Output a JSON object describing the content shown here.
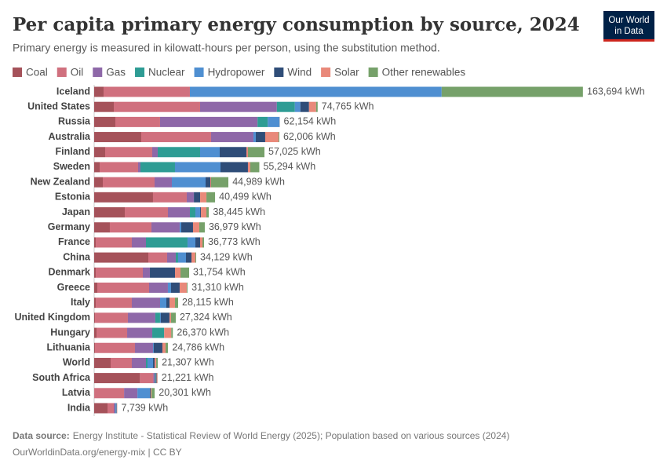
{
  "chart_data": {
    "type": "bar",
    "orientation": "horizontal",
    "stacked": true,
    "title": "Per capita primary energy consumption by source, 2024",
    "subtitle": "Primary energy is measured in kilowatt-hours per person, using the substitution method.",
    "logo": [
      "Our World",
      "in Data"
    ],
    "categories": [
      "Iceland",
      "United States",
      "Russia",
      "Australia",
      "Finland",
      "Sweden",
      "New Zealand",
      "Estonia",
      "Japan",
      "Germany",
      "France",
      "China",
      "Denmark",
      "Greece",
      "Italy",
      "United Kingdom",
      "Hungary",
      "Lithuania",
      "World",
      "South Africa",
      "Latvia",
      "India"
    ],
    "series": [
      {
        "name": "Coal",
        "color": "#a5525a",
        "values": [
          3150,
          6570,
          7090,
          15760,
          3680,
          1840,
          2890,
          19700,
          10250,
          5250,
          530,
          18130,
          530,
          1050,
          530,
          260,
          790,
          260,
          5520,
          15340,
          30,
          4470
        ]
      },
      {
        "name": "Oil",
        "color": "#d0707e",
        "values": [
          28900,
          28900,
          14970,
          23380,
          15760,
          12870,
          17340,
          11300,
          14450,
          13920,
          12080,
          6300,
          15760,
          17340,
          12080,
          11030,
          10250,
          13400,
          7090,
          4470,
          9980,
          2100
        ]
      },
      {
        "name": "Gas",
        "color": "#8e68a8",
        "values": [
          0,
          25700,
          32640,
          14190,
          1840,
          790,
          5780,
          2360,
          7360,
          9460,
          4730,
          2890,
          2360,
          6300,
          9460,
          9190,
          8410,
          6040,
          4730,
          530,
          4470,
          530
        ]
      },
      {
        "name": "Nuclear",
        "color": "#2e9c94",
        "values": [
          0,
          6040,
          3420,
          0,
          14190,
          11560,
          0,
          0,
          1840,
          0,
          13920,
          790,
          0,
          0,
          0,
          1580,
          3940,
          0,
          530,
          260,
          0,
          100
        ]
      },
      {
        "name": "Hydropower",
        "color": "#4f8fd1",
        "values": [
          84300,
          1840,
          3940,
          790,
          6570,
          15240,
          11300,
          30,
          1580,
          530,
          2630,
          2630,
          10,
          1050,
          2100,
          260,
          30,
          260,
          1840,
          50,
          4200,
          260
        ]
      },
      {
        "name": "Wind",
        "color": "#2f4d78",
        "values": [
          0,
          2890,
          50,
          3150,
          8930,
          9190,
          1580,
          2100,
          260,
          3940,
          1580,
          1840,
          8410,
          2890,
          1050,
          2890,
          30,
          2890,
          530,
          260,
          260,
          130
        ]
      },
      {
        "name": "Solar",
        "color": "#e9897a",
        "values": [
          0,
          2360,
          20,
          4470,
          530,
          790,
          260,
          2100,
          1840,
          2100,
          790,
          1310,
          1840,
          2360,
          1840,
          530,
          2360,
          1050,
          530,
          260,
          260,
          130
        ]
      },
      {
        "name": "Other renewables",
        "color": "#76a16a",
        "values": [
          47300,
          530,
          20,
          260,
          5520,
          3020,
          5780,
          2890,
          790,
          1840,
          530,
          260,
          2890,
          260,
          1050,
          1580,
          530,
          790,
          530,
          50,
          1050,
          20
        ]
      }
    ],
    "totals": [
      163694,
      74765,
      62154,
      62006,
      57025,
      55294,
      44989,
      40499,
      38445,
      36979,
      36773,
      34129,
      31754,
      31310,
      28115,
      27324,
      26370,
      24786,
      21307,
      21221,
      20301,
      7739
    ],
    "total_labels": [
      "163,694 kWh",
      "74,765 kWh",
      "62,154 kWh",
      "62,006 kWh",
      "57,025 kWh",
      "55,294 kWh",
      "44,989 kWh",
      "40,499 kWh",
      "38,445 kWh",
      "36,979 kWh",
      "36,773 kWh",
      "34,129 kWh",
      "31,754 kWh",
      "31,310 kWh",
      "28,115 kWh",
      "27,324 kWh",
      "26,370 kWh",
      "24,786 kWh",
      "21,307 kWh",
      "21,221 kWh",
      "20,301 kWh",
      "7,739 kWh"
    ],
    "source_label": "Data source:",
    "source_text": "Energy Institute - Statistical Review of World Energy (2025); Population based on various sources (2024)",
    "footer": "OurWorldinData.org/energy-mix | CC BY"
  }
}
